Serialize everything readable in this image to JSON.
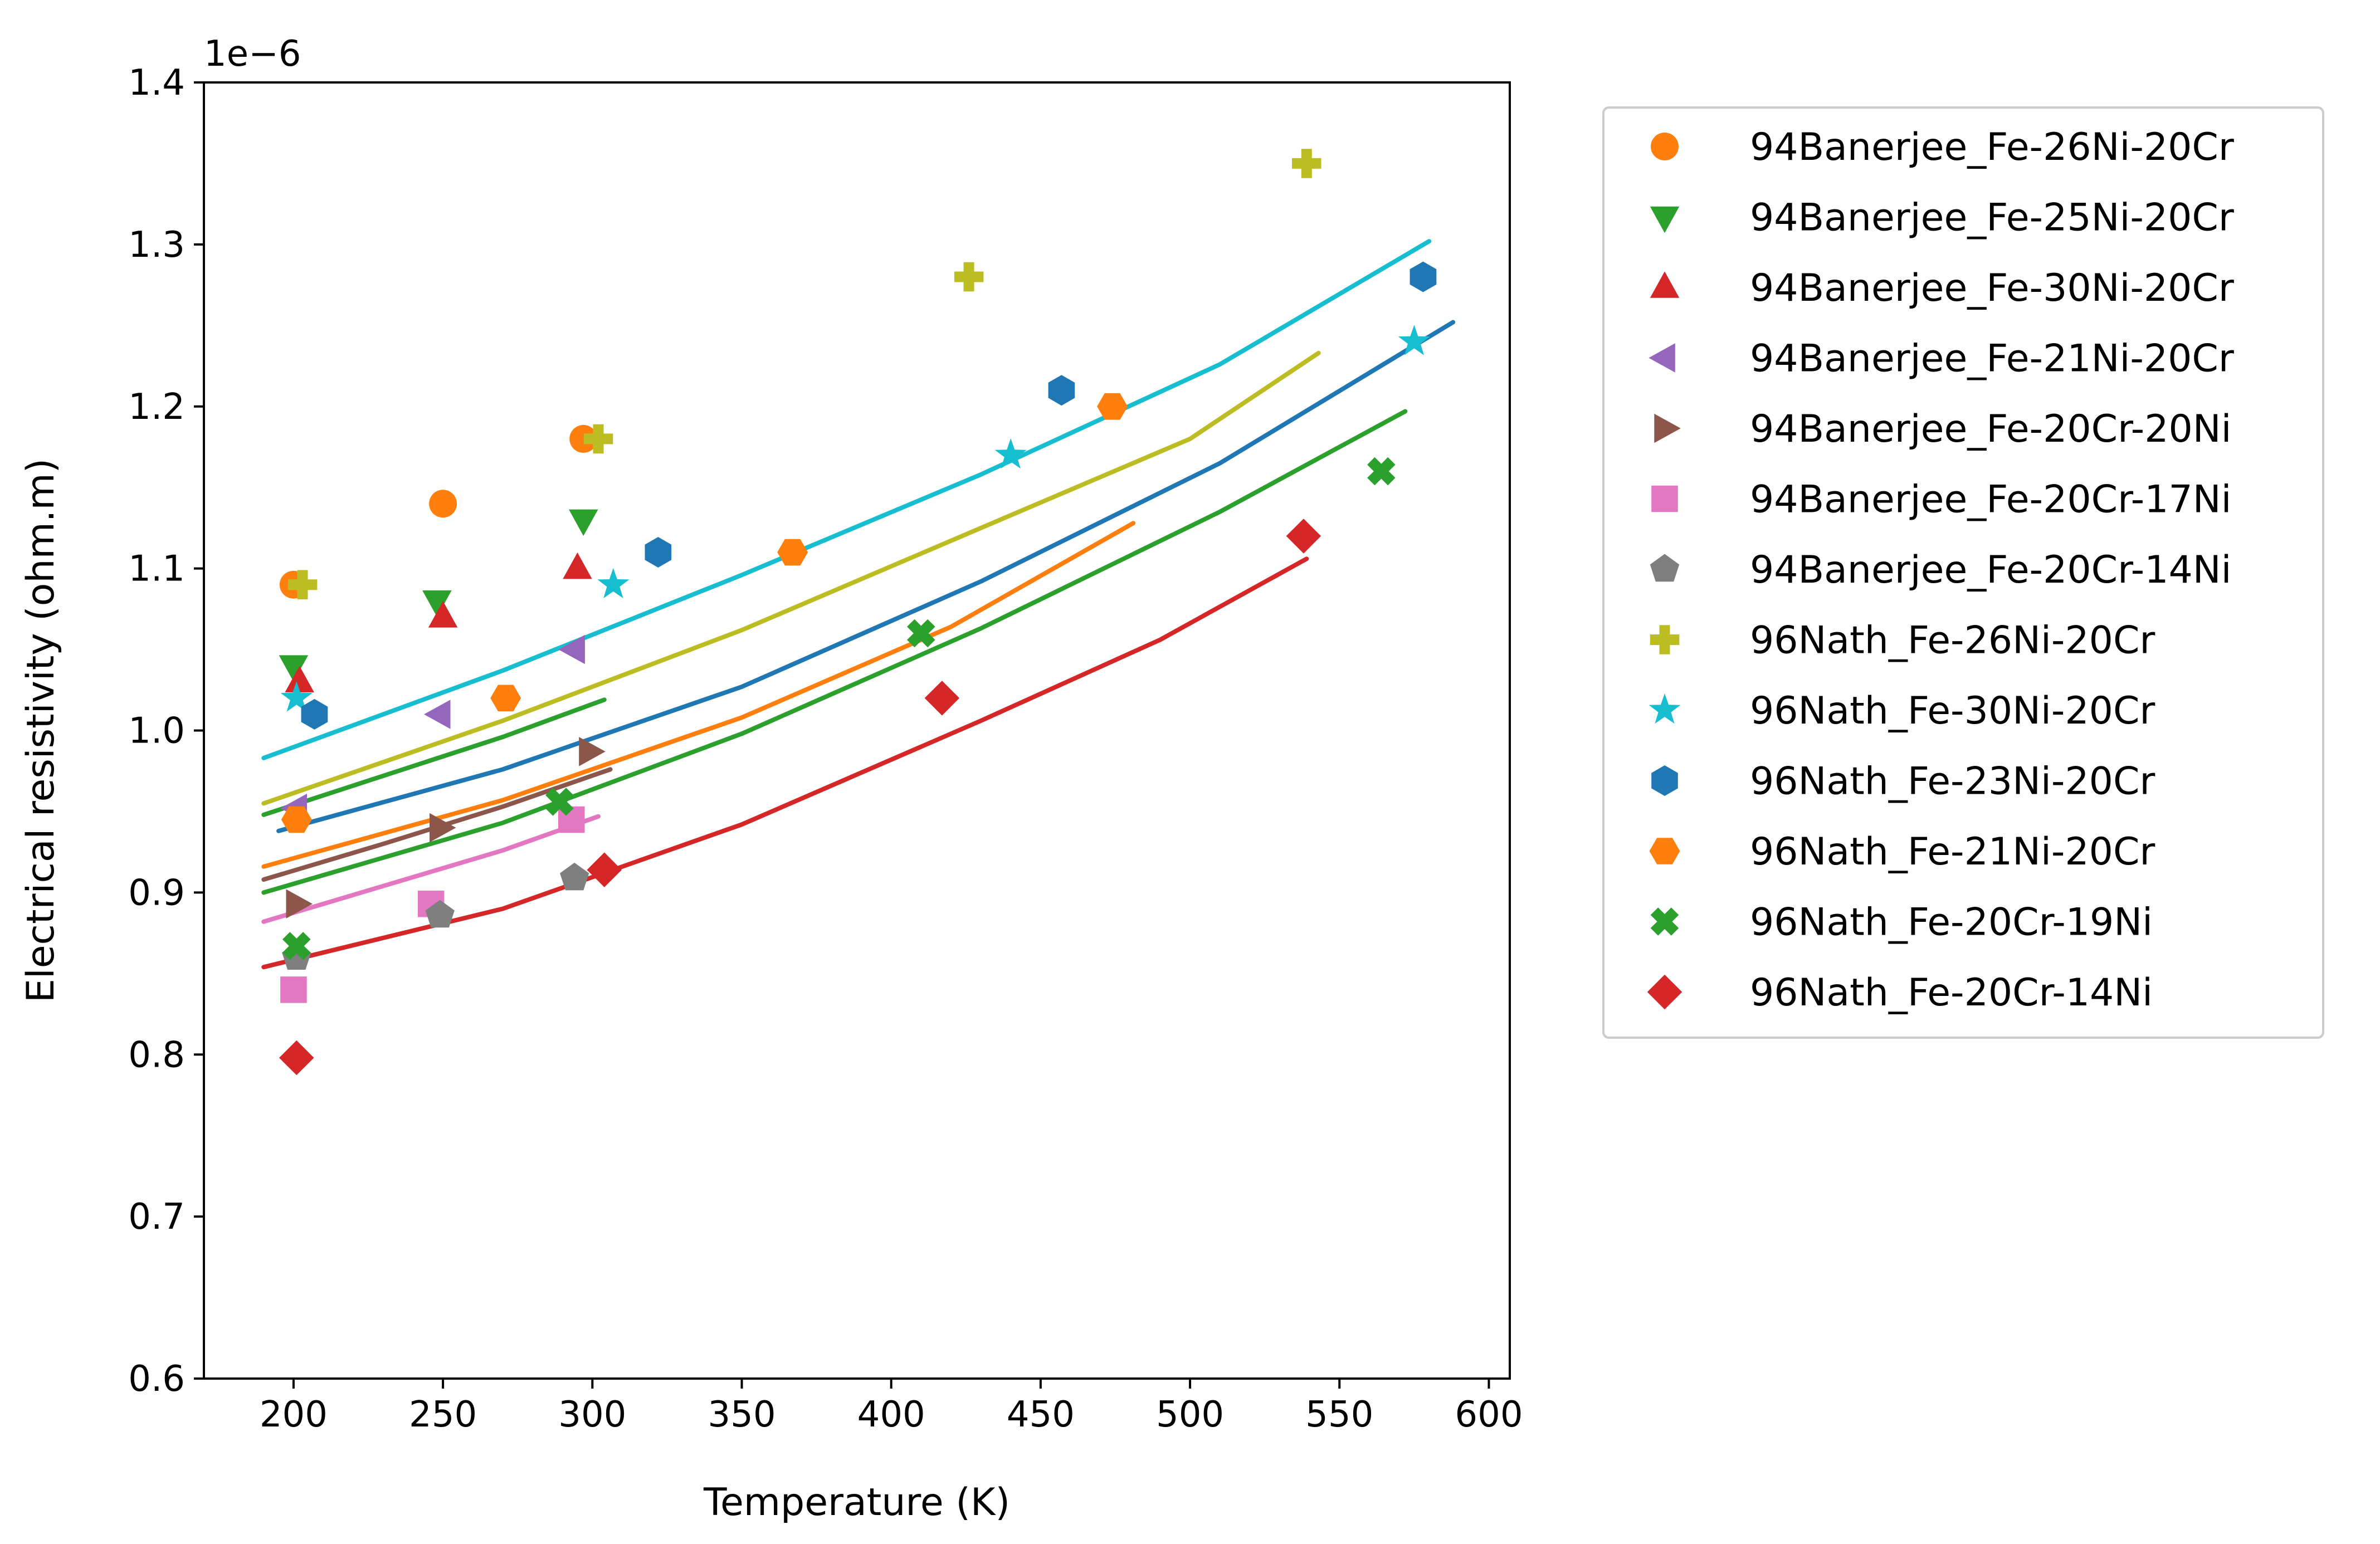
{
  "chart_data": {
    "type": "scatter",
    "xlabel": "Temperature (K)",
    "ylabel": "Electrical resistivity (ohm.m)",
    "offset_text": "1e−6",
    "xlim": [
      170,
      607
    ],
    "ylim": [
      0.6,
      1.4
    ],
    "y_scale_factor": "1e-6",
    "x_ticks": [
      200,
      250,
      300,
      350,
      400,
      450,
      500,
      550,
      600
    ],
    "x_tick_labels": [
      "200",
      "250",
      "300",
      "350",
      "400",
      "450",
      "500",
      "550",
      "600"
    ],
    "y_ticks": [
      0.6,
      0.7,
      0.8,
      0.9,
      1.0,
      1.1,
      1.2,
      1.3,
      1.4
    ],
    "y_tick_labels": [
      "0.6",
      "0.7",
      "0.8",
      "0.9",
      "1.0",
      "1.1",
      "1.2",
      "1.3",
      "1.4"
    ],
    "grid": false,
    "legend_position": "outside-right",
    "series": [
      {
        "name": "94Banerjee_Fe-26Ni-20Cr",
        "color": "#ff7f0e",
        "marker": "circle",
        "points": [
          [
            200,
            1.09
          ],
          [
            250,
            1.14
          ],
          [
            297,
            1.18
          ]
        ]
      },
      {
        "name": "94Banerjee_Fe-25Ni-20Cr",
        "color": "#2ca02c",
        "marker": "triangle-down",
        "points": [
          [
            200,
            1.04
          ],
          [
            248,
            1.08
          ],
          [
            297,
            1.13
          ]
        ]
      },
      {
        "name": "94Banerjee_Fe-30Ni-20Cr",
        "color": "#d62728",
        "marker": "triangle-up",
        "points": [
          [
            202,
            1.03
          ],
          [
            250,
            1.07
          ],
          [
            295,
            1.1
          ]
        ]
      },
      {
        "name": "94Banerjee_Fe-21Ni-20Cr",
        "color": "#9467bd",
        "marker": "triangle-left",
        "points": [
          [
            201,
            0.952
          ],
          [
            249,
            1.01
          ],
          [
            294,
            1.05
          ]
        ]
      },
      {
        "name": "94Banerjee_Fe-20Cr-20Ni",
        "color": "#8c564b",
        "marker": "triangle-right",
        "points": [
          [
            201,
            0.893
          ],
          [
            249,
            0.94
          ],
          [
            299,
            0.987
          ]
        ]
      },
      {
        "name": "94Banerjee_Fe-20Cr-17Ni",
        "color": "#e377c2",
        "marker": "square",
        "points": [
          [
            200,
            0.84
          ],
          [
            246,
            0.893
          ],
          [
            293,
            0.945
          ]
        ]
      },
      {
        "name": "94Banerjee_Fe-20Cr-14Ni",
        "color": "#7f7f7f",
        "marker": "pentagon",
        "points": [
          [
            201,
            0.86
          ],
          [
            249,
            0.886
          ],
          [
            294,
            0.909
          ]
        ]
      },
      {
        "name": "96Nath_Fe-26Ni-20Cr",
        "color": "#bcbd22",
        "marker": "plus-filled",
        "points": [
          [
            203,
            1.09
          ],
          [
            302,
            1.18
          ],
          [
            426,
            1.28
          ],
          [
            539,
            1.35
          ]
        ]
      },
      {
        "name": "96Nath_Fe-30Ni-20Cr",
        "color": "#17becf",
        "marker": "star",
        "points": [
          [
            201,
            1.02
          ],
          [
            307,
            1.09
          ],
          [
            440,
            1.17
          ],
          [
            575,
            1.24
          ]
        ]
      },
      {
        "name": "96Nath_Fe-23Ni-20Cr",
        "color": "#1f77b4",
        "marker": "hexagon",
        "points": [
          [
            207,
            1.01
          ],
          [
            322,
            1.11
          ],
          [
            457,
            1.21
          ],
          [
            578,
            1.28
          ]
        ]
      },
      {
        "name": "96Nath_Fe-21Ni-20Cr",
        "color": "#ff7f0e",
        "marker": "hexagon-flat",
        "points": [
          [
            201,
            0.945
          ],
          [
            271,
            1.02
          ],
          [
            367,
            1.11
          ],
          [
            474,
            1.2
          ]
        ]
      },
      {
        "name": "96Nath_Fe-20Cr-19Ni",
        "color": "#2ca02c",
        "marker": "x-filled",
        "points": [
          [
            201,
            0.867
          ],
          [
            289,
            0.956
          ],
          [
            410,
            1.06
          ],
          [
            564,
            1.16
          ]
        ]
      },
      {
        "name": "96Nath_Fe-20Cr-14Ni",
        "color": "#d62728",
        "marker": "diamond",
        "points": [
          [
            201,
            0.798
          ],
          [
            304,
            0.914
          ],
          [
            417,
            1.02
          ],
          [
            538,
            1.12
          ]
        ]
      }
    ],
    "fit_lines": [
      {
        "color": "#17becf",
        "points": [
          [
            190,
            0.983
          ],
          [
            270,
            1.037
          ],
          [
            350,
            1.096
          ],
          [
            430,
            1.158
          ],
          [
            510,
            1.226
          ],
          [
            580,
            1.302
          ]
        ]
      },
      {
        "color": "#bcbd22",
        "points": [
          [
            190,
            0.955
          ],
          [
            270,
            1.006
          ],
          [
            350,
            1.062
          ],
          [
            430,
            1.125
          ],
          [
            500,
            1.18
          ],
          [
            543,
            1.233
          ]
        ]
      },
      {
        "color": "#1f77b4",
        "points": [
          [
            195,
            0.938
          ],
          [
            270,
            0.976
          ],
          [
            350,
            1.027
          ],
          [
            430,
            1.092
          ],
          [
            510,
            1.165
          ],
          [
            588,
            1.252
          ]
        ]
      },
      {
        "color": "#2ca02c",
        "points": [
          [
            190,
            0.948
          ],
          [
            230,
            0.972
          ],
          [
            270,
            0.996
          ],
          [
            304,
            1.019
          ]
        ]
      },
      {
        "color": "#ff7f0e",
        "points": [
          [
            190,
            0.916
          ],
          [
            270,
            0.957
          ],
          [
            350,
            1.008
          ],
          [
            420,
            1.064
          ],
          [
            481,
            1.128
          ]
        ]
      },
      {
        "color": "#8c564b",
        "points": [
          [
            190,
            0.908
          ],
          [
            230,
            0.93
          ],
          [
            270,
            0.953
          ],
          [
            306,
            0.976
          ]
        ]
      },
      {
        "color": "#2ca02c",
        "points": [
          [
            190,
            0.9
          ],
          [
            270,
            0.943
          ],
          [
            350,
            0.998
          ],
          [
            430,
            1.063
          ],
          [
            510,
            1.135
          ],
          [
            572,
            1.197
          ]
        ]
      },
      {
        "color": "#e377c2",
        "points": [
          [
            190,
            0.882
          ],
          [
            230,
            0.904
          ],
          [
            270,
            0.926
          ],
          [
            302,
            0.947
          ]
        ]
      },
      {
        "color": "#d62728",
        "points": [
          [
            190,
            0.854
          ],
          [
            270,
            0.89
          ],
          [
            350,
            0.942
          ],
          [
            430,
            1.006
          ],
          [
            490,
            1.056
          ],
          [
            539,
            1.106
          ]
        ]
      }
    ]
  }
}
